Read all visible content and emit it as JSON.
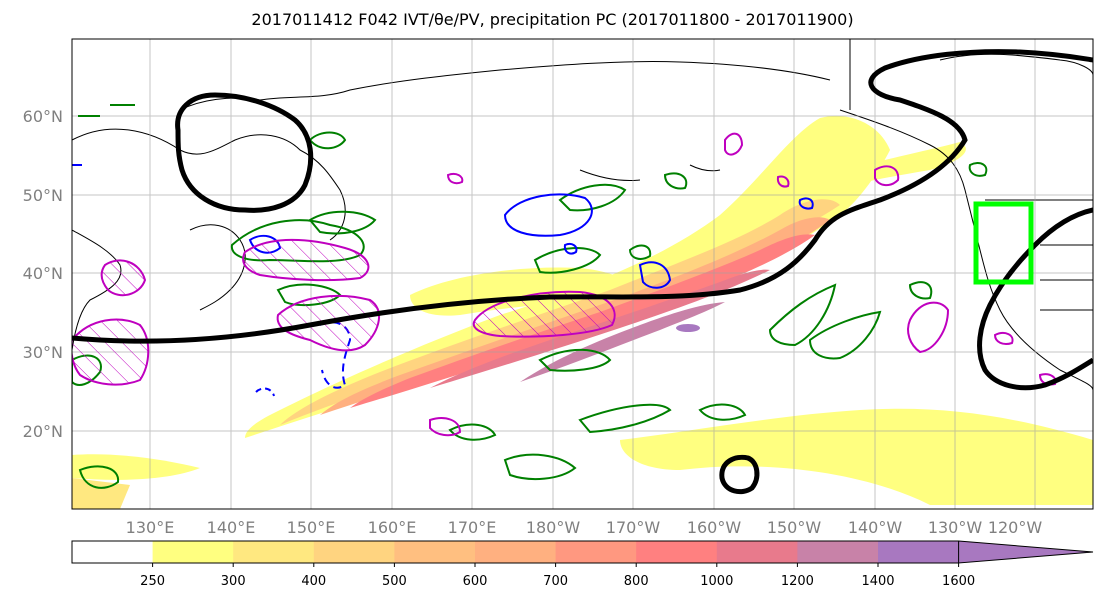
{
  "title": "2017011412 F042 IVT/θe/PV, precipitation PC (2017011800 - 2017011900)",
  "lat_labels": [
    "60°N",
    "50°N",
    "40°N",
    "30°N",
    "20°N"
  ],
  "lon_labels": [
    "130°E",
    "140°E",
    "150°E",
    "160°E",
    "170°E",
    "180°W",
    "170°W",
    "160°W",
    "150°W",
    "140°W",
    "130°W",
    "120°W"
  ],
  "colorbar": {
    "levels": [
      "250",
      "300",
      "400",
      "500",
      "600",
      "700",
      "800",
      "1000",
      "1200",
      "1400",
      "1600"
    ],
    "colors": [
      "#ffffff",
      "#ffff80",
      "#ffe880",
      "#ffd480",
      "#ffbf80",
      "#ffb080",
      "#ff9880",
      "#ff8080",
      "#e87a8c",
      "#c882a8",
      "#a878c0"
    ]
  },
  "overlay_colors": {
    "pv_contour": "#000000",
    "theta_e_positive": "#008000",
    "theta_e_negative": "#0000ff",
    "pv_anomaly": "#bf00bf",
    "target_box": "#00ff00"
  }
}
